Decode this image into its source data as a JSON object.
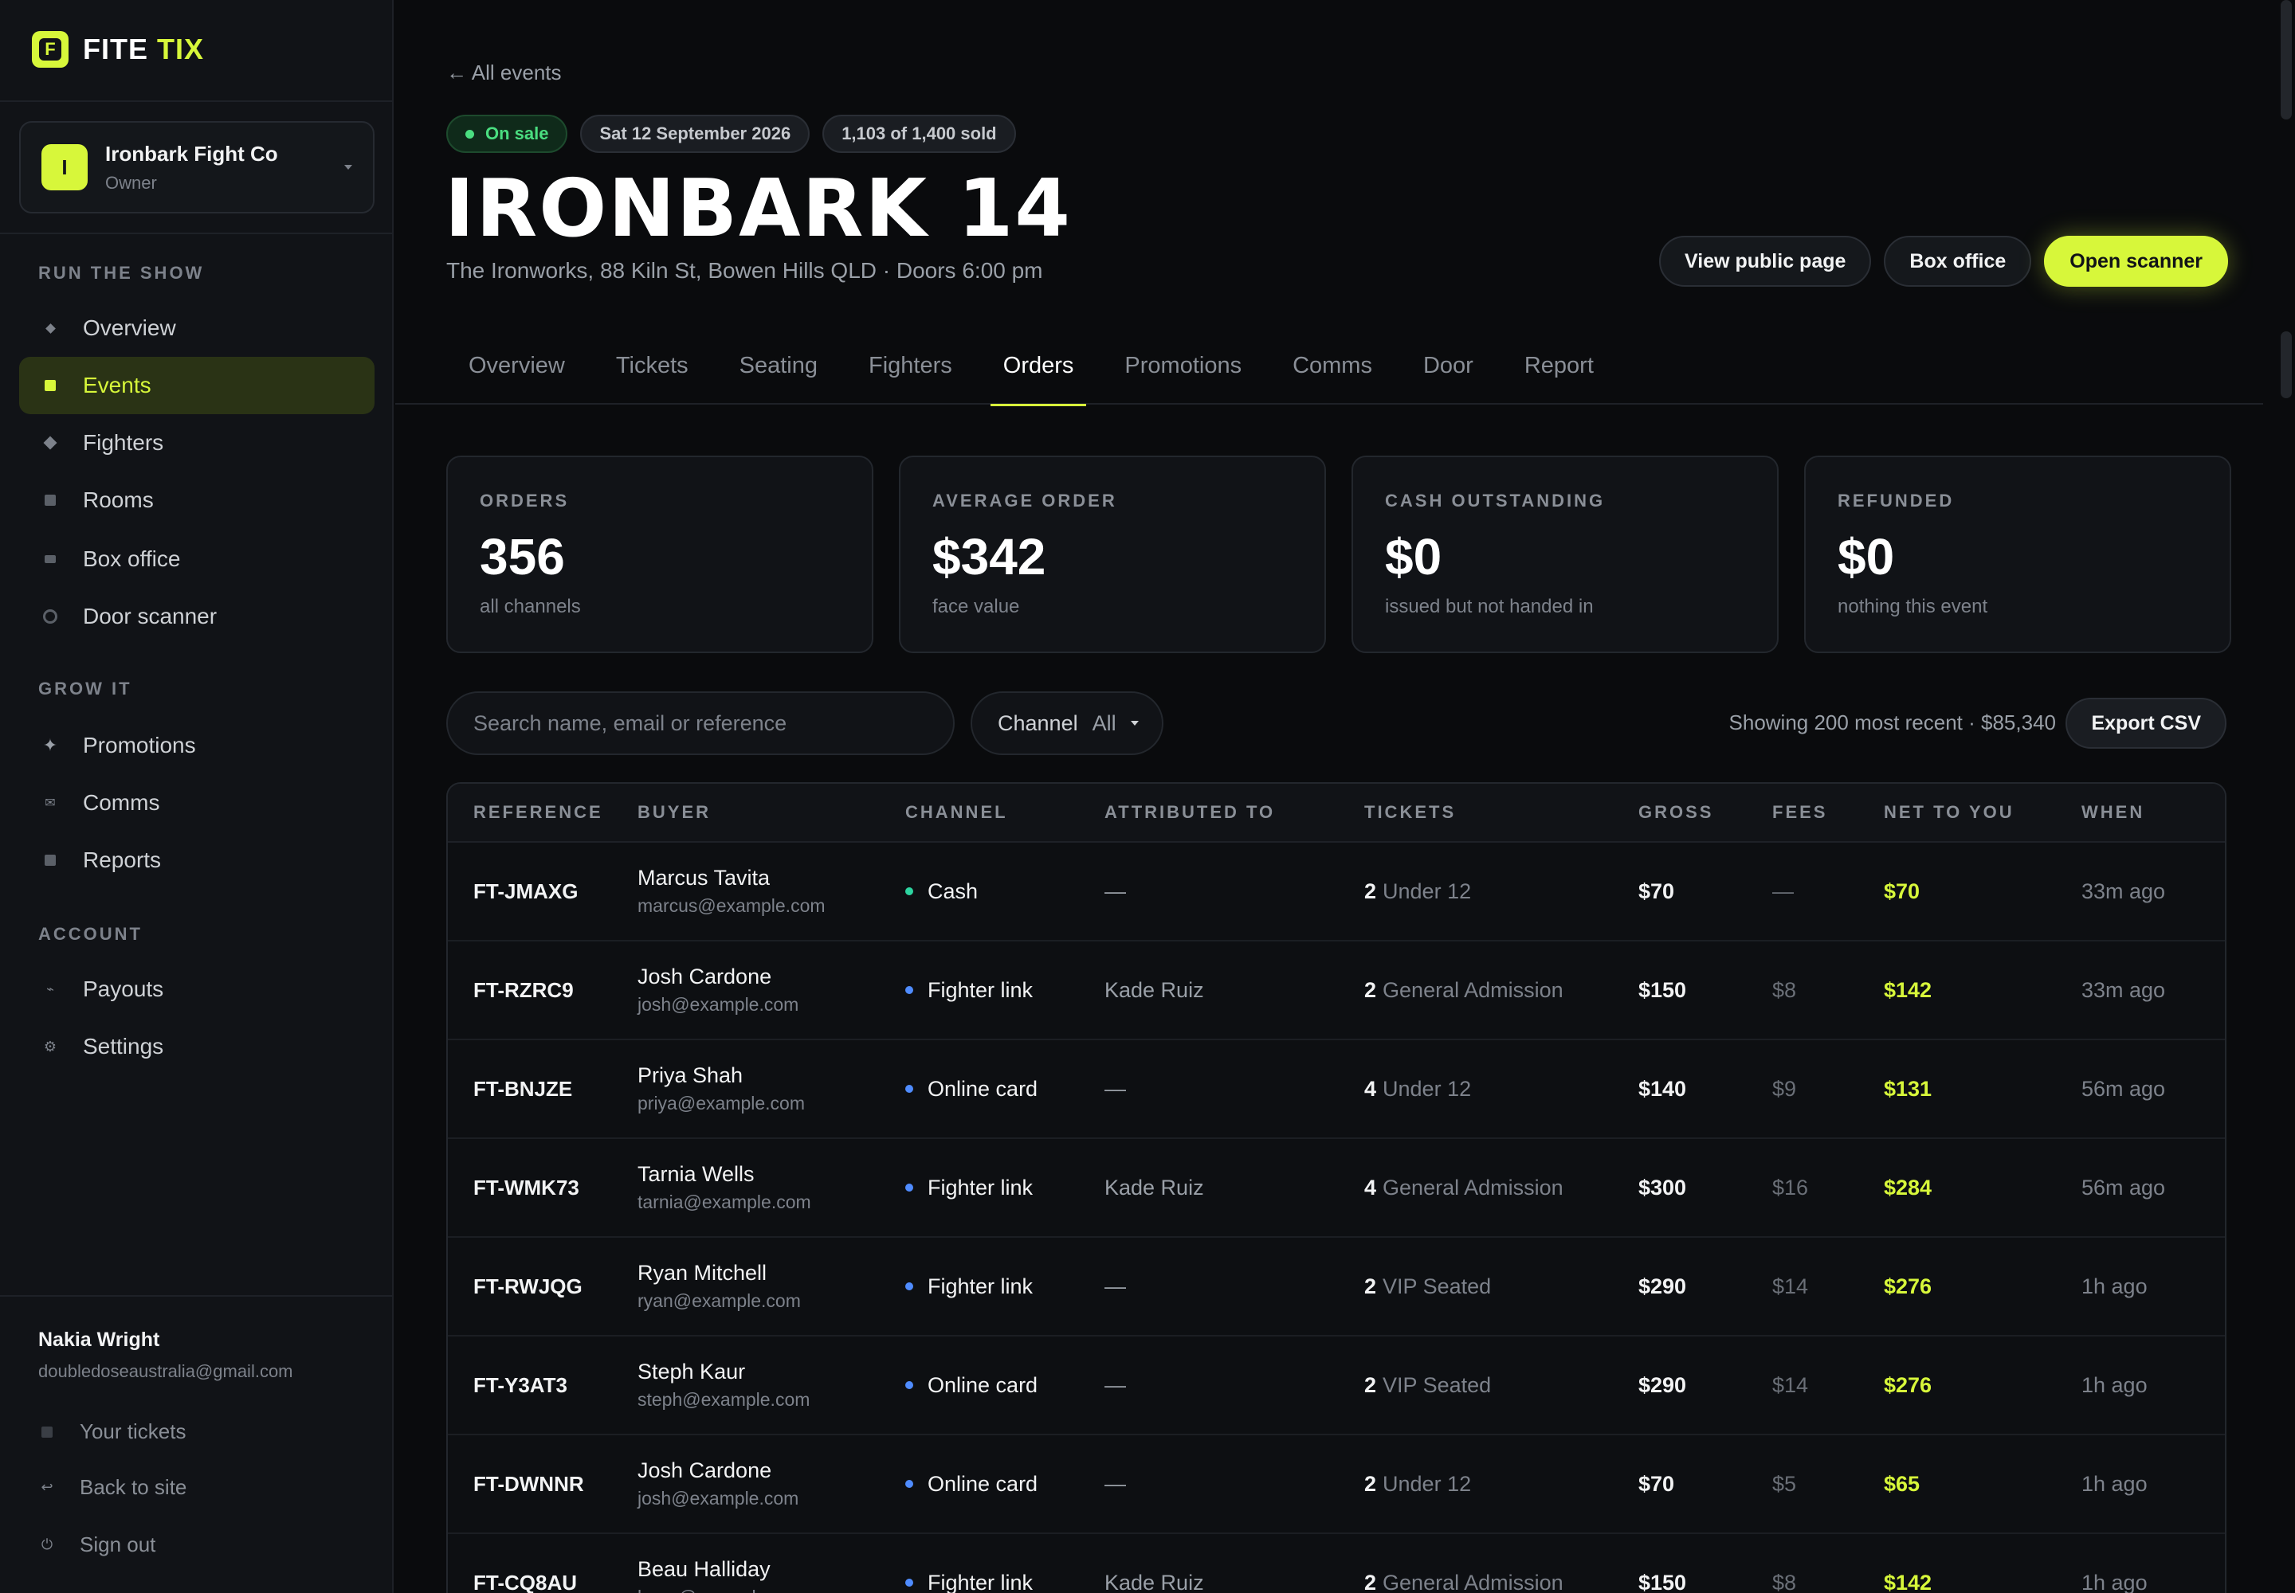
{
  "brand": {
    "letter": "F",
    "word1": "FITE",
    "word2": "TIX"
  },
  "org": {
    "initial": "I",
    "name": "Ironbark Fight Co",
    "role": "Owner"
  },
  "sidebar": {
    "sections": [
      {
        "label": "RUN THE SHOW",
        "items": [
          {
            "label": "Overview",
            "icon": "diamond-icon"
          },
          {
            "label": "Events",
            "icon": "calendar-icon",
            "active": true
          },
          {
            "label": "Fighters",
            "icon": "fighter-icon"
          },
          {
            "label": "Rooms",
            "icon": "room-icon"
          },
          {
            "label": "Box office",
            "icon": "box-office-icon"
          },
          {
            "label": "Door scanner",
            "icon": "scanner-icon"
          }
        ]
      },
      {
        "label": "GROW IT",
        "items": [
          {
            "label": "Promotions",
            "icon": "sparkle-icon"
          },
          {
            "label": "Comms",
            "icon": "mail-icon"
          },
          {
            "label": "Reports",
            "icon": "report-icon"
          }
        ]
      },
      {
        "label": "ACCOUNT",
        "items": [
          {
            "label": "Payouts",
            "icon": "payout-icon"
          },
          {
            "label": "Settings",
            "icon": "gear-icon"
          }
        ]
      }
    ],
    "user": {
      "name": "Nakia Wright",
      "email": "doubledoseaustralia@gmail.com"
    },
    "footer": [
      {
        "label": "Your tickets",
        "icon": "ticket-icon"
      },
      {
        "label": "Back to site",
        "icon": "return-icon"
      },
      {
        "label": "Sign out",
        "icon": "power-icon"
      }
    ]
  },
  "header": {
    "back": "← All events",
    "status": "On sale",
    "date": "Sat 12 September 2026",
    "sold": "1,103 of 1,400 sold",
    "title": "IRONBARK 14",
    "subtitle": "The Ironworks, 88 Kiln St, Bowen Hills QLD · Doors 6:00 pm",
    "actions": {
      "public": "View public page",
      "box": "Box office",
      "scanner": "Open scanner"
    }
  },
  "tabs": [
    "Overview",
    "Tickets",
    "Seating",
    "Fighters",
    "Orders",
    "Promotions",
    "Comms",
    "Door",
    "Report"
  ],
  "active_tab": "Orders",
  "stats": [
    {
      "label": "ORDERS",
      "value": "356",
      "sub": "all channels"
    },
    {
      "label": "AVERAGE ORDER",
      "value": "$342",
      "sub": "face value"
    },
    {
      "label": "CASH OUTSTANDING",
      "value": "$0",
      "sub": "issued but not handed in"
    },
    {
      "label": "REFUNDED",
      "value": "$0",
      "sub": "nothing this event"
    }
  ],
  "toolbar": {
    "search_placeholder": "Search name, email or reference",
    "channel_label": "Channel",
    "channel_value": "All",
    "showing": "Showing 200 most recent · $85,340",
    "export": "Export CSV"
  },
  "table": {
    "columns": [
      "REFERENCE",
      "BUYER",
      "CHANNEL",
      "ATTRIBUTED TO",
      "TICKETS",
      "GROSS",
      "FEES",
      "NET TO YOU",
      "WHEN"
    ],
    "channel_colors": {
      "Cash": "#2dd4a0",
      "Fighter link": "#4f8cff",
      "Online card": "#4f8cff"
    },
    "rows": [
      {
        "ref": "FT-JMAXG",
        "name": "Marcus Tavita",
        "email": "marcus@example.com",
        "channel": "Cash",
        "attributed": "—",
        "qty": "2",
        "type": "Under 12",
        "gross": "$70",
        "fees": "—",
        "net": "$70",
        "when": "33m ago"
      },
      {
        "ref": "FT-RZRC9",
        "name": "Josh Cardone",
        "email": "josh@example.com",
        "channel": "Fighter link",
        "attributed": "Kade Ruiz",
        "qty": "2",
        "type": "General Admission",
        "gross": "$150",
        "fees": "$8",
        "net": "$142",
        "when": "33m ago"
      },
      {
        "ref": "FT-BNJZE",
        "name": "Priya Shah",
        "email": "priya@example.com",
        "channel": "Online card",
        "attributed": "—",
        "qty": "4",
        "type": "Under 12",
        "gross": "$140",
        "fees": "$9",
        "net": "$131",
        "when": "56m ago"
      },
      {
        "ref": "FT-WMK73",
        "name": "Tarnia Wells",
        "email": "tarnia@example.com",
        "channel": "Fighter link",
        "attributed": "Kade Ruiz",
        "qty": "4",
        "type": "General Admission",
        "gross": "$300",
        "fees": "$16",
        "net": "$284",
        "when": "56m ago"
      },
      {
        "ref": "FT-RWJQG",
        "name": "Ryan Mitchell",
        "email": "ryan@example.com",
        "channel": "Fighter link",
        "attributed": "—",
        "qty": "2",
        "type": "VIP Seated",
        "gross": "$290",
        "fees": "$14",
        "net": "$276",
        "when": "1h ago"
      },
      {
        "ref": "FT-Y3AT3",
        "name": "Steph Kaur",
        "email": "steph@example.com",
        "channel": "Online card",
        "attributed": "—",
        "qty": "2",
        "type": "VIP Seated",
        "gross": "$290",
        "fees": "$14",
        "net": "$276",
        "when": "1h ago"
      },
      {
        "ref": "FT-DWNNR",
        "name": "Josh Cardone",
        "email": "josh@example.com",
        "channel": "Online card",
        "attributed": "—",
        "qty": "2",
        "type": "Under 12",
        "gross": "$70",
        "fees": "$5",
        "net": "$65",
        "when": "1h ago"
      },
      {
        "ref": "FT-CQ8AU",
        "name": "Beau Halliday",
        "email": "beau@example.com",
        "channel": "Fighter link",
        "attributed": "Kade Ruiz",
        "qty": "2",
        "type": "General Admission",
        "gross": "$150",
        "fees": "$8",
        "net": "$142",
        "when": "1h ago"
      }
    ]
  }
}
